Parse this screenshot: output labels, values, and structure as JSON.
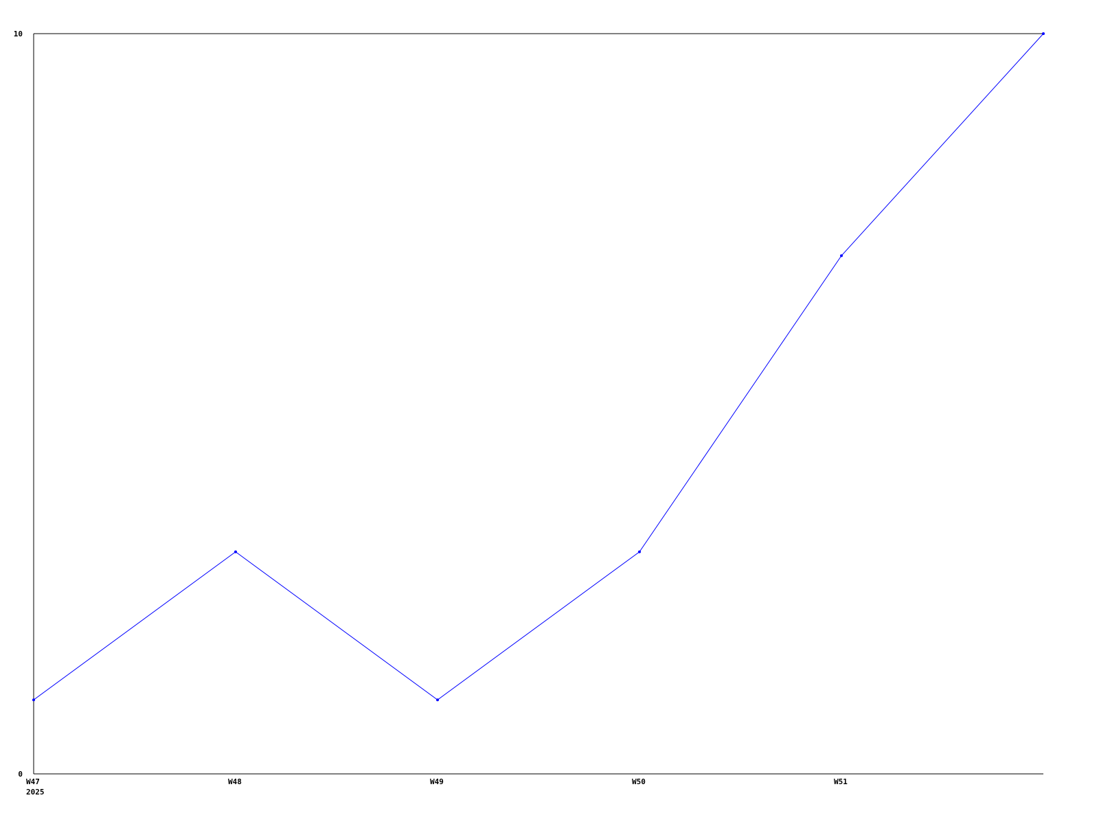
{
  "chart_data": {
    "type": "line",
    "title": "",
    "xlabel": "",
    "ylabel": "",
    "x": [
      47,
      48,
      49,
      50,
      51,
      52
    ],
    "xtick_labels": [
      "W47",
      "W48",
      "W49",
      "W50",
      "W51"
    ],
    "xtick_sublabel": "2025",
    "ylim": [
      0,
      10
    ],
    "ytick_labels": [
      "0",
      "10"
    ],
    "grid": false,
    "series": [
      {
        "values": [
          1,
          3,
          1,
          3,
          7,
          10
        ],
        "color": "#0000ff"
      }
    ],
    "axis_color": "#000000"
  }
}
